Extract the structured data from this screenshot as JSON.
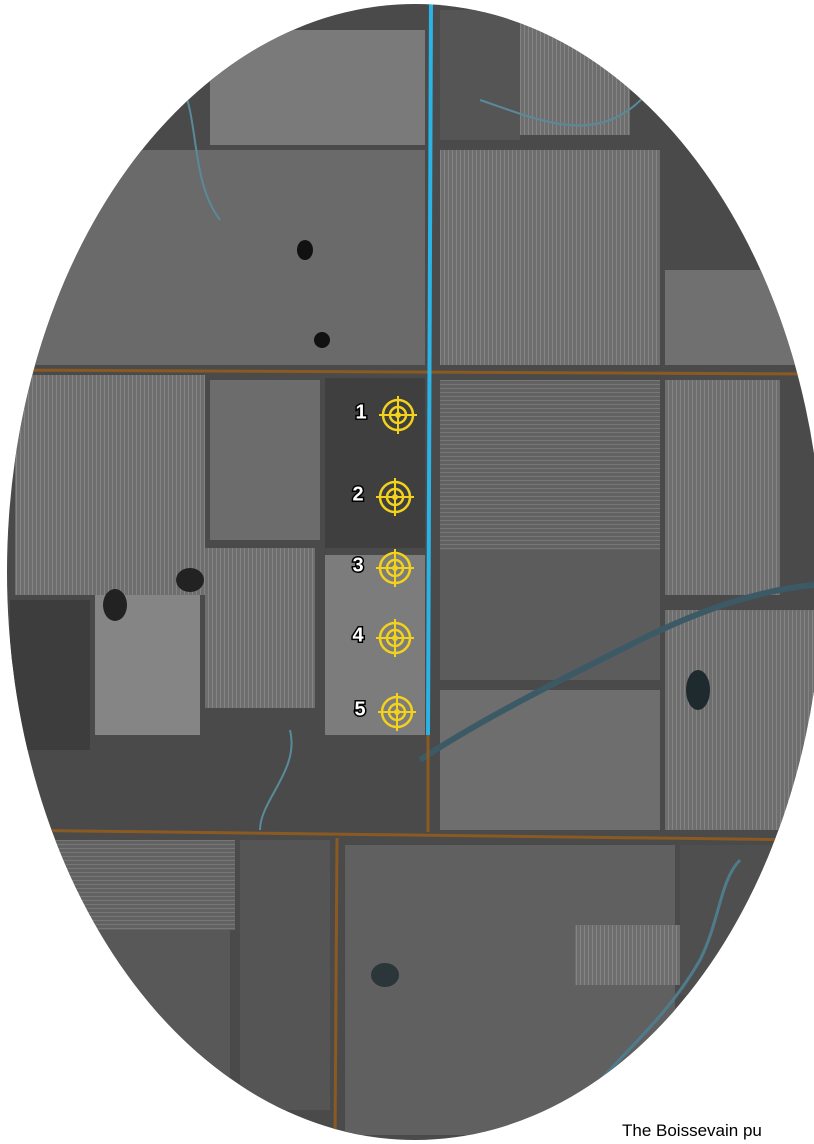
{
  "markers": [
    {
      "label": "1"
    },
    {
      "label": "2"
    },
    {
      "label": "3"
    },
    {
      "label": "4"
    },
    {
      "label": "5"
    }
  ],
  "caption": "The Boissevain pu"
}
